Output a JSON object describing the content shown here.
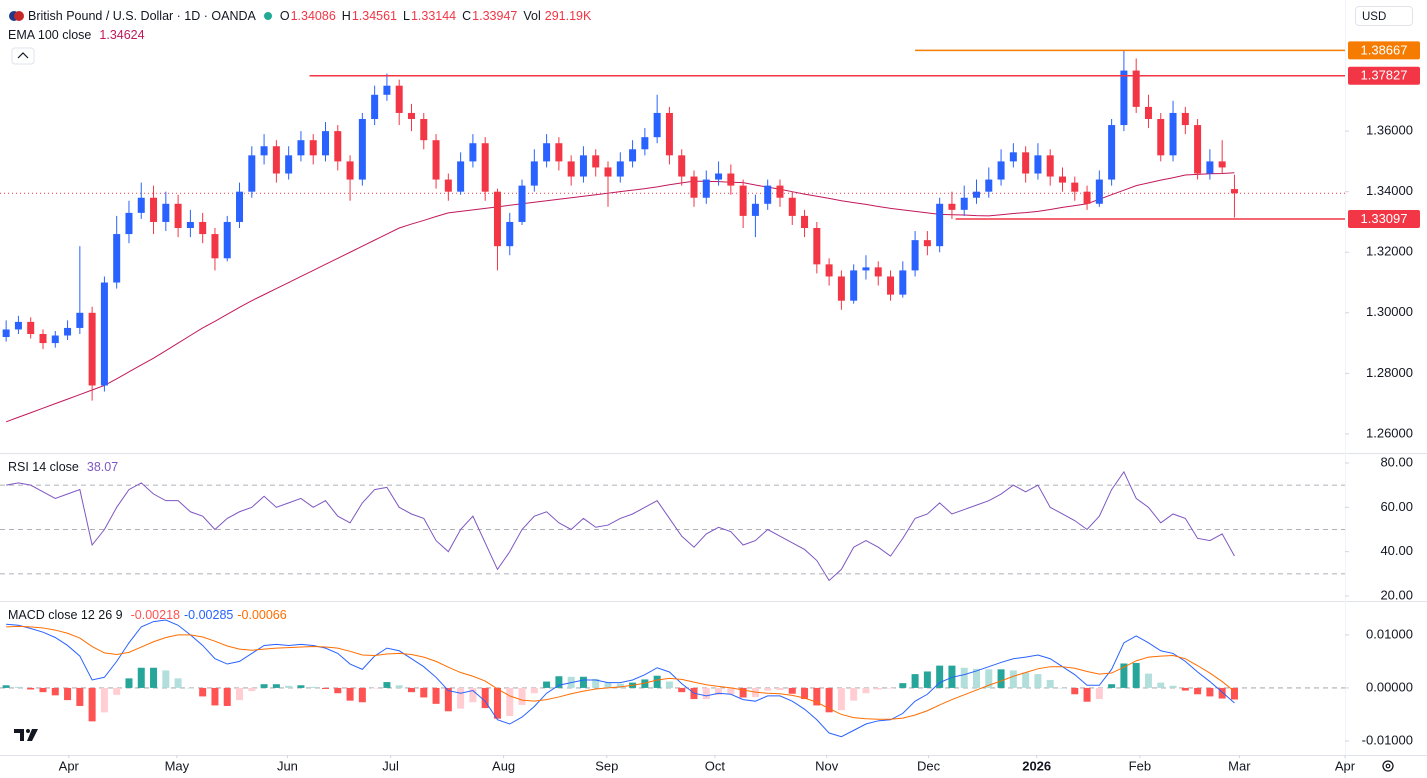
{
  "chart_data": [
    {
      "type": "candlestick",
      "title": "British Pound / U.S. Dollar · 1D · OANDA",
      "ohlc_labels": [
        "O",
        "H",
        "L",
        "C"
      ],
      "volume_label": "Vol",
      "volume": "291.19K",
      "currency": "USD",
      "up_color": "#2962ff",
      "down_color": "#f23645",
      "open": [
        1.292,
        1.2945,
        1.297,
        1.293,
        1.29,
        1.2925,
        1.295,
        1.3,
        1.276,
        1.31,
        1.326,
        1.333,
        1.338,
        1.33,
        1.336,
        1.328,
        1.33,
        1.326,
        1.318,
        1.33,
        1.34,
        1.352,
        1.355,
        1.346,
        1.352,
        1.357,
        1.352,
        1.36,
        1.35,
        1.344,
        1.364,
        1.372,
        1.375,
        1.366,
        1.364,
        1.357,
        1.344,
        1.34,
        1.35,
        1.356,
        1.34,
        1.322,
        1.33,
        1.342,
        1.35,
        1.356,
        1.35,
        1.345,
        1.352,
        1.348,
        1.345,
        1.35,
        1.354,
        1.358,
        1.366,
        1.352,
        1.345,
        1.338,
        1.344,
        1.346,
        1.342,
        1.332,
        1.336,
        1.342,
        1.338,
        1.332,
        1.328,
        1.316,
        1.312,
        1.304,
        1.314,
        1.315,
        1.312,
        1.306,
        1.314,
        1.324,
        1.322,
        1.336,
        1.334,
        1.338,
        1.34,
        1.344,
        1.35,
        1.353,
        1.346,
        1.352,
        1.345,
        1.343,
        1.34,
        1.336,
        1.344,
        1.362,
        1.38,
        1.368,
        1.364,
        1.352,
        1.366,
        1.362,
        1.346,
        1.35,
        1.34086
      ],
      "high": [
        1.2975,
        1.299,
        1.2985,
        1.2945,
        1.294,
        1.2975,
        1.322,
        1.302,
        1.312,
        1.332,
        1.337,
        1.343,
        1.342,
        1.34,
        1.339,
        1.334,
        1.333,
        1.328,
        1.332,
        1.343,
        1.355,
        1.359,
        1.357,
        1.355,
        1.36,
        1.359,
        1.363,
        1.362,
        1.352,
        1.366,
        1.375,
        1.379,
        1.377,
        1.369,
        1.366,
        1.359,
        1.346,
        1.353,
        1.359,
        1.358,
        1.341,
        1.333,
        1.344,
        1.354,
        1.359,
        1.358,
        1.352,
        1.355,
        1.354,
        1.35,
        1.353,
        1.357,
        1.361,
        1.372,
        1.368,
        1.354,
        1.347,
        1.347,
        1.35,
        1.349,
        1.344,
        1.339,
        1.344,
        1.344,
        1.34,
        1.334,
        1.33,
        1.318,
        1.314,
        1.316,
        1.319,
        1.317,
        1.314,
        1.317,
        1.327,
        1.327,
        1.338,
        1.34,
        1.342,
        1.344,
        1.348,
        1.354,
        1.356,
        1.355,
        1.356,
        1.354,
        1.348,
        1.345,
        1.342,
        1.347,
        1.364,
        1.38667,
        1.384,
        1.372,
        1.366,
        1.37,
        1.368,
        1.364,
        1.354,
        1.357,
        1.34561
      ],
      "low": [
        1.2905,
        1.293,
        1.2915,
        1.288,
        1.2885,
        1.291,
        1.293,
        1.271,
        1.274,
        1.308,
        1.323,
        1.331,
        1.326,
        1.327,
        1.325,
        1.325,
        1.323,
        1.314,
        1.317,
        1.328,
        1.338,
        1.349,
        1.343,
        1.344,
        1.35,
        1.349,
        1.35,
        1.347,
        1.337,
        1.342,
        1.362,
        1.37,
        1.362,
        1.36,
        1.354,
        1.341,
        1.337,
        1.339,
        1.348,
        1.337,
        1.314,
        1.319,
        1.329,
        1.34,
        1.348,
        1.347,
        1.342,
        1.343,
        1.345,
        1.335,
        1.343,
        1.348,
        1.352,
        1.356,
        1.349,
        1.342,
        1.335,
        1.336,
        1.342,
        1.339,
        1.328,
        1.325,
        1.334,
        1.335,
        1.329,
        1.325,
        1.313,
        1.309,
        1.301,
        1.303,
        1.311,
        1.309,
        1.304,
        1.305,
        1.312,
        1.319,
        1.32,
        1.331,
        1.332,
        1.336,
        1.338,
        1.342,
        1.348,
        1.343,
        1.344,
        1.342,
        1.34,
        1.337,
        1.334,
        1.335,
        1.342,
        1.36,
        1.366,
        1.361,
        1.35,
        1.35,
        1.359,
        1.344,
        1.344,
        1.346,
        1.33144
      ],
      "close": [
        1.2945,
        1.297,
        1.293,
        1.29,
        1.2925,
        1.295,
        1.3,
        1.276,
        1.31,
        1.326,
        1.333,
        1.338,
        1.33,
        1.336,
        1.328,
        1.33,
        1.326,
        1.318,
        1.33,
        1.34,
        1.352,
        1.355,
        1.346,
        1.352,
        1.357,
        1.352,
        1.36,
        1.35,
        1.344,
        1.364,
        1.372,
        1.375,
        1.366,
        1.364,
        1.357,
        1.344,
        1.34,
        1.35,
        1.356,
        1.34,
        1.322,
        1.33,
        1.342,
        1.35,
        1.356,
        1.35,
        1.345,
        1.352,
        1.348,
        1.345,
        1.35,
        1.354,
        1.358,
        1.366,
        1.352,
        1.345,
        1.338,
        1.344,
        1.346,
        1.342,
        1.332,
        1.336,
        1.342,
        1.338,
        1.332,
        1.328,
        1.316,
        1.312,
        1.304,
        1.314,
        1.315,
        1.312,
        1.306,
        1.314,
        1.324,
        1.322,
        1.336,
        1.334,
        1.338,
        1.34,
        1.344,
        1.35,
        1.353,
        1.346,
        1.352,
        1.345,
        1.343,
        1.34,
        1.336,
        1.344,
        1.362,
        1.38,
        1.368,
        1.364,
        1.352,
        1.366,
        1.362,
        1.346,
        1.35,
        1.348,
        1.33947
      ],
      "overlay": {
        "name": "EMA 100 close",
        "color": "#c2185b",
        "values": [
          1.264,
          1.2655,
          1.267,
          1.2685,
          1.27,
          1.2715,
          1.273,
          1.2745,
          1.276,
          1.2782,
          1.2805,
          1.2828,
          1.285,
          1.2875,
          1.29,
          1.2925,
          1.295,
          1.2972,
          1.2995,
          1.3018,
          1.304,
          1.306,
          1.308,
          1.31,
          1.312,
          1.314,
          1.316,
          1.318,
          1.32,
          1.322,
          1.324,
          1.326,
          1.328,
          1.3293,
          1.3305,
          1.3318,
          1.333,
          1.3335,
          1.334,
          1.3345,
          1.335,
          1.3355,
          1.336,
          1.3365,
          1.337,
          1.3375,
          1.338,
          1.3385,
          1.339,
          1.3395,
          1.34,
          1.3405,
          1.341,
          1.3416,
          1.3423,
          1.3429,
          1.3435,
          1.3434,
          1.3433,
          1.3431,
          1.343,
          1.3422,
          1.3415,
          1.3408,
          1.34,
          1.3392,
          1.3385,
          1.3378,
          1.337,
          1.3364,
          1.3358,
          1.3351,
          1.3345,
          1.334,
          1.3335,
          1.333,
          1.3325,
          1.3324,
          1.3323,
          1.3321,
          1.332,
          1.3324,
          1.3328,
          1.3331,
          1.3335,
          1.3341,
          1.3348,
          1.3354,
          1.336,
          1.3375,
          1.339,
          1.3405,
          1.342,
          1.3429,
          1.3438,
          1.3446,
          1.3455,
          1.3457,
          1.3459,
          1.346,
          1.34624
        ]
      },
      "levels": [
        {
          "value": 1.38667,
          "color": "#f57c00",
          "start": 74.0
        },
        {
          "value": 1.37827,
          "color": "#f23645",
          "start": 24.7
        },
        {
          "value": 1.33097,
          "color": "#f23645",
          "start": 77.3
        }
      ],
      "last_price_line": true,
      "xlim": [
        -0.5,
        109
      ],
      "xticks": [
        {
          "value": 5.1,
          "label": "Apr"
        },
        {
          "value": 13.9,
          "label": "May"
        },
        {
          "value": 22.9,
          "label": "Jun"
        },
        {
          "value": 31.3,
          "label": "Jul"
        },
        {
          "value": 40.5,
          "label": "Aug"
        },
        {
          "value": 48.9,
          "label": "Sep"
        },
        {
          "value": 57.7,
          "label": "Oct"
        },
        {
          "value": 66.8,
          "label": "Nov"
        },
        {
          "value": 75.1,
          "label": "Dec"
        },
        {
          "value": 83.9,
          "label": "2026",
          "bold": true
        },
        {
          "value": 92.3,
          "label": "Feb"
        },
        {
          "value": 100.4,
          "label": "Mar"
        },
        {
          "value": 109,
          "label": "Apr"
        }
      ],
      "ylim": [
        1.2537,
        1.4033
      ],
      "yticks": [
        {
          "value": 1.26,
          "label": "1.26000"
        },
        {
          "value": 1.28,
          "label": "1.28000"
        },
        {
          "value": 1.3,
          "label": "1.30000"
        },
        {
          "value": 1.32,
          "label": "1.32000"
        },
        {
          "value": 1.34,
          "label": "1.34000"
        },
        {
          "value": 1.36,
          "label": "1.36000"
        }
      ]
    },
    {
      "type": "line",
      "title": "RSI 14 close",
      "color": "#7e57c2",
      "values": [
        70,
        71,
        70,
        67,
        64,
        66,
        68,
        43,
        50,
        60,
        68,
        71,
        66,
        63,
        63,
        58,
        56,
        50,
        55,
        58,
        60,
        65,
        60,
        62,
        64,
        60,
        63,
        56,
        53,
        62,
        68,
        69,
        60,
        57,
        55,
        45,
        40,
        50,
        56,
        44,
        32,
        40,
        50,
        56,
        58,
        53,
        50,
        55,
        51,
        52,
        55,
        57,
        60,
        63,
        55,
        47,
        42,
        48,
        51,
        49,
        43,
        45,
        50,
        47,
        44,
        41,
        36,
        27,
        32,
        42,
        45,
        42,
        38,
        46,
        55,
        57,
        62,
        57,
        59,
        61,
        63,
        66,
        70,
        67,
        70,
        60,
        57,
        54,
        50,
        56,
        68,
        76,
        64,
        60,
        53,
        57,
        55,
        46,
        45,
        48,
        38.07
      ],
      "bands": [
        70,
        50,
        30
      ],
      "ylim": [
        18.2,
        83.6
      ],
      "yticks": [
        {
          "value": 20,
          "label": "20.00"
        },
        {
          "value": 40,
          "label": "40.00"
        },
        {
          "value": 60,
          "label": "60.00"
        },
        {
          "value": 80,
          "label": "80.00"
        }
      ]
    },
    {
      "type": "macd",
      "title": "MACD close 12 26 9",
      "histogram": [
        0.0005,
        0.0002,
        -0.0003,
        -0.0008,
        -0.0014,
        -0.0023,
        -0.0034,
        -0.0063,
        -0.0046,
        -0.0013,
        0.0018,
        0.0038,
        0.0038,
        0.0033,
        0.0018,
        0.0,
        -0.0016,
        -0.0033,
        -0.0034,
        -0.0023,
        -0.0006,
        0.0007,
        0.0007,
        0.0004,
        0.0005,
        0.0002,
        -0.0002,
        -0.001,
        -0.0024,
        -0.0027,
        -0.0001,
        0.0011,
        0.0005,
        -0.0008,
        -0.0018,
        -0.003,
        -0.0044,
        -0.0039,
        -0.0027,
        -0.0038,
        -0.0058,
        -0.0053,
        -0.0032,
        -0.001,
        0.0012,
        0.0022,
        0.0021,
        0.0021,
        0.0017,
        0.001,
        0.0008,
        0.001,
        0.0016,
        0.0023,
        0.0012,
        -0.0008,
        -0.0021,
        -0.0021,
        -0.0013,
        -0.0012,
        -0.0018,
        -0.0017,
        -0.0005,
        -0.0004,
        -0.0011,
        -0.0021,
        -0.0033,
        -0.0046,
        -0.0042,
        -0.0024,
        -0.001,
        -0.0003,
        -0.0001,
        0.0009,
        0.0026,
        0.0031,
        0.0042,
        0.0042,
        0.0038,
        0.0036,
        0.0035,
        0.0035,
        0.0033,
        0.0029,
        0.0026,
        0.0015,
        0.0,
        -0.0012,
        -0.0026,
        -0.0021,
        0.0007,
        0.0046,
        0.0047,
        0.0027,
        0.001,
        0.0004,
        -0.0005,
        -0.0012,
        -0.0016,
        -0.002,
        -0.00218
      ],
      "macd": [
        0.012,
        0.0118,
        0.0112,
        0.0105,
        0.0095,
        0.008,
        0.006,
        0.0015,
        0.002,
        0.005,
        0.0085,
        0.0115,
        0.0125,
        0.0128,
        0.0118,
        0.01,
        0.008,
        0.0055,
        0.0045,
        0.005,
        0.0065,
        0.008,
        0.0082,
        0.008,
        0.0082,
        0.008,
        0.0075,
        0.0065,
        0.0045,
        0.0035,
        0.006,
        0.0075,
        0.007,
        0.0055,
        0.004,
        0.002,
        -0.0005,
        -0.001,
        -0.0005,
        -0.0025,
        -0.006,
        -0.0068,
        -0.0055,
        -0.0035,
        -0.001,
        0.0005,
        0.001,
        0.0015,
        0.0015,
        0.001,
        0.001,
        0.0015,
        0.0025,
        0.0038,
        0.003,
        0.0008,
        -0.001,
        -0.0015,
        -0.001,
        -0.0012,
        -0.0022,
        -0.0025,
        -0.0015,
        -0.0015,
        -0.0025,
        -0.004,
        -0.006,
        -0.0085,
        -0.0092,
        -0.008,
        -0.0068,
        -0.0062,
        -0.006,
        -0.0048,
        -0.0025,
        -0.0012,
        0.001,
        0.002,
        0.0025,
        0.0032,
        0.004,
        0.0048,
        0.0055,
        0.0058,
        0.0062,
        0.0055,
        0.004,
        0.0025,
        0.0005,
        0.0005,
        0.0035,
        0.0085,
        0.0098,
        0.0085,
        0.007,
        0.0065,
        0.005,
        0.003,
        0.0012,
        -0.0008,
        -0.00285
      ],
      "signal": [
        0.0115,
        0.0116,
        0.0115,
        0.0113,
        0.0109,
        0.0103,
        0.0094,
        0.0078,
        0.0066,
        0.0063,
        0.0067,
        0.0077,
        0.0087,
        0.0095,
        0.01,
        0.01,
        0.0096,
        0.0088,
        0.0079,
        0.0073,
        0.0071,
        0.0073,
        0.0075,
        0.0076,
        0.0077,
        0.0078,
        0.0077,
        0.0075,
        0.0069,
        0.0062,
        0.0061,
        0.0064,
        0.0065,
        0.0063,
        0.0058,
        0.005,
        0.0039,
        0.0029,
        0.0022,
        0.0013,
        -0.0002,
        -0.0015,
        -0.0023,
        -0.0025,
        -0.0022,
        -0.0017,
        -0.0011,
        -0.0006,
        -0.0002,
        0.0,
        0.0002,
        0.0005,
        0.0009,
        0.0015,
        0.0018,
        0.0016,
        0.0011,
        0.0006,
        0.0003,
        0.0,
        -0.0004,
        -0.0008,
        -0.001,
        -0.0011,
        -0.0014,
        -0.0019,
        -0.0027,
        -0.0039,
        -0.005,
        -0.0056,
        -0.0058,
        -0.0059,
        -0.0059,
        -0.0057,
        -0.0051,
        -0.0043,
        -0.0032,
        -0.0022,
        -0.0013,
        -0.0004,
        0.0005,
        0.0013,
        0.0022,
        0.0029,
        0.0036,
        0.004,
        0.004,
        0.0037,
        0.0031,
        0.0026,
        0.0028,
        0.0039,
        0.0051,
        0.0058,
        0.006,
        0.0061,
        0.0055,
        0.0042,
        0.0028,
        0.0012,
        -0.00066
      ],
      "histogram_colors": [
        "#26a69a",
        "#b2dfdb",
        "#ffcdd2",
        "#ff5252"
      ],
      "macd_color": "#2962ff",
      "signal_color": "#ff6d00",
      "ylim": [
        -0.01264,
        0.016
      ],
      "yticks": [
        {
          "value": -0.01,
          "label": "-0.01000"
        },
        {
          "value": 0,
          "label": "0.00000"
        },
        {
          "value": 0.01,
          "label": "0.01000"
        }
      ]
    }
  ]
}
